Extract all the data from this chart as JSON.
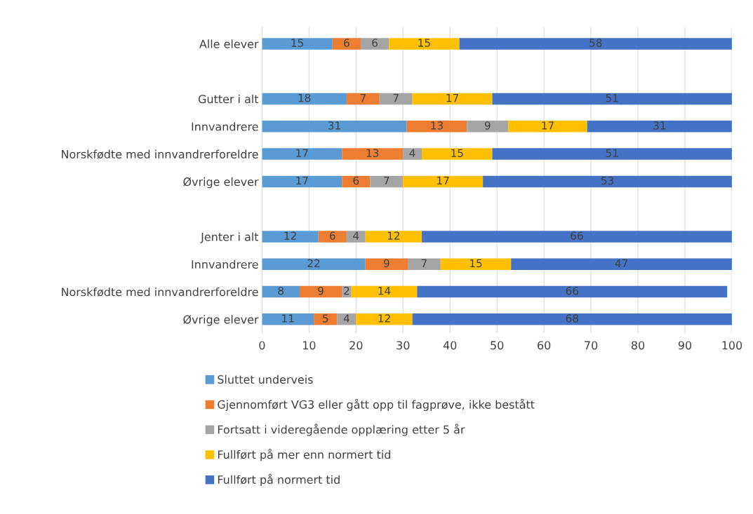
{
  "chart_data": {
    "type": "bar",
    "orientation": "horizontal",
    "stacked": true,
    "categories": [
      "Alle elever",
      null,
      "Gutter i alt",
      "Innvandrere",
      "Norskfødte med innvandrerforeldre",
      "Øvrige elever",
      null,
      "Jenter i alt",
      "Innvandrere",
      "Norskfødte med innvandrerforeldre",
      "Øvrige elever"
    ],
    "series": [
      {
        "name": "Sluttet underveis",
        "color": "#5b9bd5",
        "values": [
          15,
          null,
          18,
          30.8,
          17,
          17,
          null,
          12,
          22,
          8,
          11
        ],
        "value_labels": [
          "15",
          null,
          "18",
          "31",
          "17",
          "17",
          null,
          "12",
          "22",
          "8",
          "11"
        ]
      },
      {
        "name": "Gjennomført VG3 eller gått opp til fagprøve, ikke bestått",
        "color": "#ed7d31",
        "values": [
          6,
          null,
          7,
          12.8,
          13,
          6,
          null,
          6,
          9,
          9,
          5
        ],
        "value_labels": [
          "6",
          null,
          "7",
          "13",
          "13",
          "6",
          null,
          "6",
          "9",
          "9",
          "5"
        ]
      },
      {
        "name": "Fortsatt i videregående opplæring etter 5 år",
        "color": "#a5a5a5",
        "values": [
          6,
          null,
          7,
          8.8,
          4,
          7,
          null,
          4,
          7,
          2,
          4
        ],
        "value_labels": [
          "6",
          null,
          "7",
          "9",
          "4",
          "7",
          null,
          "4",
          "7",
          "2",
          "4"
        ]
      },
      {
        "name": "Fullført på mer enn normert tid",
        "color": "#ffc000",
        "values": [
          15,
          null,
          17,
          16.8,
          15,
          17,
          null,
          12,
          15,
          14,
          12
        ],
        "value_labels": [
          "15",
          null,
          "17",
          "17",
          "15",
          "17",
          null,
          "12",
          "15",
          "14",
          "12"
        ]
      },
      {
        "name": "Fullført på normert tid",
        "color": "#4472c4",
        "values": [
          58,
          null,
          51,
          30.8,
          51,
          53,
          null,
          66,
          47,
          66,
          68
        ],
        "value_labels": [
          "58",
          null,
          "51",
          "31",
          "51",
          "53",
          null,
          "66",
          "47",
          "66",
          "68"
        ]
      }
    ],
    "xlim": [
      0,
      100
    ],
    "xticks": [
      0,
      10,
      20,
      30,
      40,
      50,
      60,
      70,
      80,
      90,
      100
    ],
    "grid": "x",
    "legend": "bottom"
  }
}
